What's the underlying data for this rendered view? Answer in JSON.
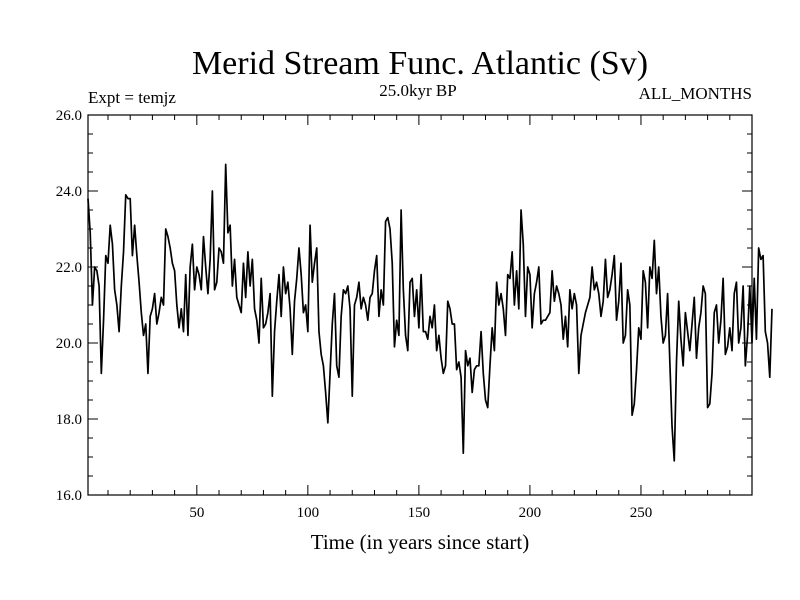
{
  "chart_data": {
    "type": "line",
    "title": "Merid Stream Func. Atlantic (Sv)",
    "subtitle_left": "Expt = temjz",
    "subtitle_center": "25.0kyr BP",
    "subtitle_right": "ALL_MONTHS",
    "xlabel": "Time (in years since start)",
    "ylabel": "",
    "xlim": [
      1,
      300
    ],
    "ylim": [
      16,
      26
    ],
    "x_ticks": [
      50,
      100,
      150,
      200,
      250
    ],
    "x_tick_labels": [
      "50",
      "100",
      "150",
      "200",
      "250"
    ],
    "y_ticks": [
      16,
      18,
      20,
      22,
      24,
      26
    ],
    "y_tick_labels": [
      "16.0",
      "18.0",
      "20.0",
      "22.0",
      "24.0",
      "26.0"
    ],
    "grid": false,
    "series": [
      {
        "name": "Merid Stream Func. Atlantic",
        "color": "#000000",
        "x_start": 1,
        "x_step": 1,
        "values": [
          23.8,
          22.9,
          21.0,
          22.0,
          21.9,
          21.5,
          19.2,
          20.6,
          22.3,
          22.1,
          23.1,
          22.6,
          21.4,
          21.0,
          20.3,
          21.5,
          22.4,
          23.9,
          23.8,
          23.8,
          22.3,
          23.1,
          22.3,
          21.6,
          20.8,
          20.2,
          20.5,
          19.2,
          20.7,
          20.9,
          21.3,
          20.5,
          20.8,
          21.2,
          21.0,
          23.0,
          22.8,
          22.5,
          22.1,
          21.9,
          21.0,
          20.4,
          20.9,
          20.3,
          21.8,
          20.2,
          22.0,
          22.6,
          21.4,
          22.0,
          21.8,
          21.4,
          22.8,
          22.0,
          21.3,
          22.2,
          24.0,
          21.4,
          21.6,
          22.5,
          22.4,
          22.1,
          24.7,
          22.9,
          23.1,
          21.5,
          22.2,
          21.2,
          21.0,
          20.8,
          22.1,
          21.2,
          22.4,
          21.5,
          22.2,
          20.9,
          20.6,
          20.0,
          21.7,
          20.4,
          20.5,
          20.8,
          21.3,
          18.6,
          20.3,
          21.1,
          21.8,
          20.7,
          22.0,
          21.3,
          21.6,
          20.9,
          19.7,
          21.1,
          21.7,
          22.5,
          21.8,
          20.8,
          21.0,
          20.3,
          23.1,
          21.6,
          22.1,
          22.5,
          20.3,
          19.7,
          19.4,
          18.7,
          17.9,
          19.2,
          20.5,
          21.3,
          19.4,
          19.1,
          20.7,
          21.4,
          21.3,
          21.5,
          20.9,
          18.6,
          21.0,
          21.2,
          21.6,
          20.9,
          21.2,
          21.0,
          20.6,
          21.2,
          21.3,
          21.9,
          22.3,
          20.7,
          21.4,
          21.0,
          23.2,
          23.3,
          23.0,
          22.1,
          19.9,
          20.6,
          20.2,
          23.5,
          21.4,
          20.2,
          19.8,
          21.6,
          21.7,
          20.7,
          21.4,
          20.4,
          21.8,
          20.3,
          20.3,
          20.1,
          20.7,
          20.4,
          21.0,
          19.8,
          20.2,
          19.6,
          19.2,
          19.4,
          21.1,
          20.9,
          20.5,
          20.5,
          19.3,
          19.5,
          19.1,
          17.1,
          19.8,
          19.4,
          19.6,
          18.7,
          19.3,
          19.4,
          19.4,
          20.3,
          19.2,
          18.5,
          18.3,
          19.4,
          20.4,
          19.8,
          21.6,
          21.0,
          21.3,
          20.9,
          20.2,
          21.8,
          21.7,
          22.4,
          21.0,
          21.9,
          20.9,
          23.5,
          22.6,
          20.7,
          22.0,
          21.8,
          20.4,
          21.3,
          21.6,
          22.0,
          20.5,
          20.6,
          20.6,
          20.7,
          20.8,
          21.9,
          21.1,
          21.5,
          21.3,
          21.0,
          20.1,
          20.7,
          19.9,
          21.4,
          20.9,
          21.3,
          21.0,
          19.2,
          20.2,
          20.5,
          20.8,
          21.0,
          21.2,
          22.0,
          21.4,
          21.6,
          21.3,
          20.7,
          21.1,
          22.2,
          21.2,
          21.4,
          21.8,
          22.3,
          20.6,
          21.1,
          22.1,
          20.0,
          20.2,
          21.4,
          21.0,
          18.1,
          18.4,
          19.3,
          20.4,
          20.1,
          21.9,
          21.6,
          20.4,
          22.0,
          21.7,
          22.7,
          21.3,
          22.0,
          20.7,
          20.0,
          20.2,
          21.3,
          19.5,
          17.8,
          16.9,
          19.5,
          21.1,
          20.1,
          19.4,
          20.8,
          20.3,
          19.8,
          20.5,
          21.2,
          19.6,
          20.4,
          20.8,
          21.5,
          21.3,
          18.3,
          18.4,
          19.2,
          20.8,
          21.0,
          20.0,
          20.6,
          21.7,
          19.7,
          19.9,
          20.4,
          19.8,
          21.3,
          21.6,
          20.0,
          20.4,
          21.5,
          19.4,
          20.2,
          21.5,
          20.0,
          21.7,
          20.1,
          22.5,
          22.2,
          22.3,
          20.3,
          20.0,
          19.1,
          20.9
        ]
      }
    ]
  }
}
